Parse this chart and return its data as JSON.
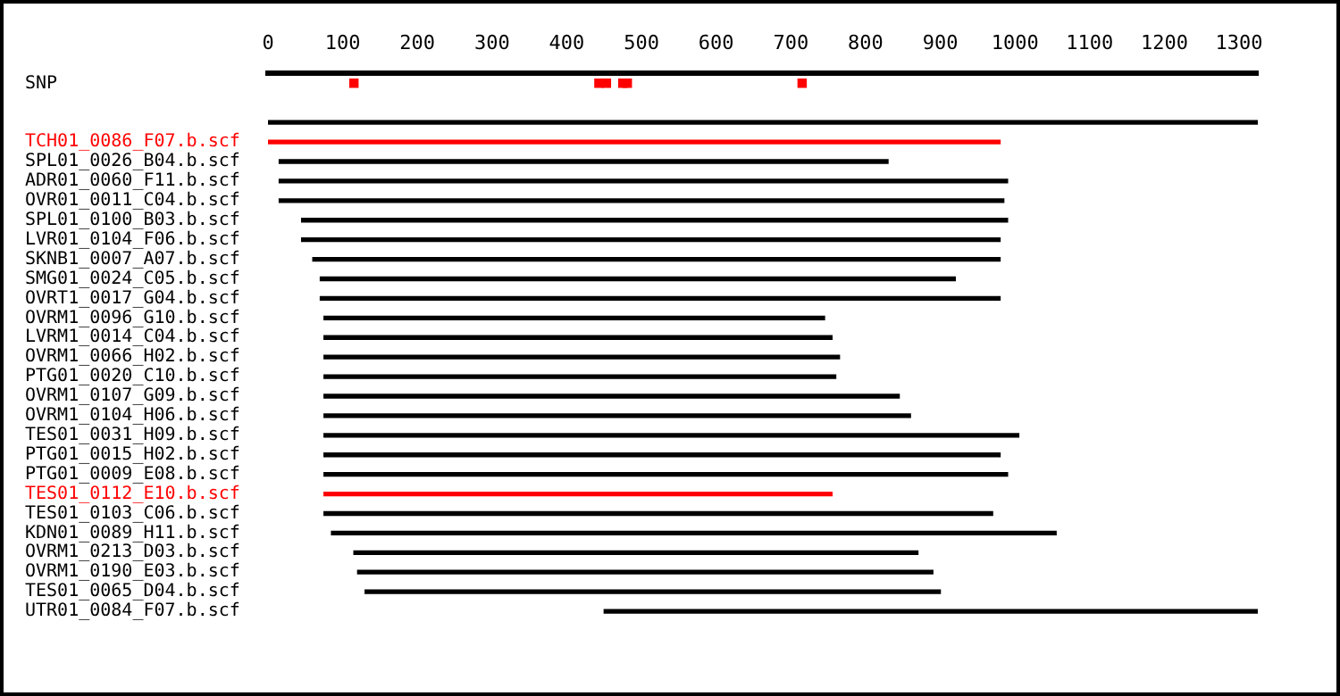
{
  "chart_data": {
    "type": "bar",
    "orientation": "horizontal",
    "legend": false,
    "grid": false,
    "categories": [
      "SNP",
      null,
      null,
      "TCH01_0086_F07.b.scf",
      "SPL01_0026_B04.b.scf",
      "ADR01_0060_F11.b.scf",
      "OVR01_0011_C04.b.scf",
      "SPL01_0100_B03.b.scf",
      "LVR01_0104_F06.b.scf",
      "SKNB1_0007_A07.b.scf",
      "SMG01_0024_C05.b.scf",
      "OVRT1_0017_G04.b.scf",
      "OVRM1_0096_G10.b.scf",
      "LVRM1_0014_C04.b.scf",
      "OVRM1_0066_H02.b.scf",
      "PTG01_0020_C10.b.scf",
      "OVRM1_0107_G09.b.scf",
      "OVRM1_0104_H06.b.scf",
      "TES01_0031_H09.b.scf",
      "PTG01_0015_H02.b.scf",
      "PTG01_0009_E08.b.scf",
      "TES01_0112_E10.b.scf",
      "TES01_0103_C06.b.scf",
      "KDN01_0089_H11.b.scf",
      "OVRM1_0213_D03.b.scf",
      "OVRM1_0190_E03.b.scf",
      "TES01_0065_D04.b.scf",
      "UTR01_0084_F07.b.scf"
    ],
    "xlim": [
      0,
      1325
    ],
    "xticks": [
      0,
      100,
      200,
      300,
      400,
      500,
      600,
      700,
      800,
      900,
      1000,
      1100,
      1200,
      1300
    ],
    "series": [
      {
        "base": [
          null,
          null,
          0,
          0,
          15,
          15,
          15,
          45,
          45,
          60,
          70,
          70,
          75,
          75,
          75,
          75,
          75,
          75,
          75,
          75,
          75,
          75,
          75,
          85,
          115,
          120,
          130,
          450
        ],
        "values": [
          null,
          null,
          1325,
          980,
          815,
          975,
          970,
          945,
          935,
          920,
          850,
          910,
          670,
          680,
          690,
          685,
          770,
          785,
          930,
          905,
          915,
          680,
          895,
          970,
          755,
          770,
          770,
          875
        ],
        "colors": [
          "#000000",
          "#000000",
          "#000000",
          "#ff0000",
          "#000000",
          "#000000",
          "#000000",
          "#000000",
          "#000000",
          "#000000",
          "#000000",
          "#000000",
          "#000000",
          "#000000",
          "#000000",
          "#000000",
          "#000000",
          "#000000",
          "#000000",
          "#000000",
          "#000000",
          "#ff0000",
          "#000000",
          "#000000",
          "#000000",
          "#000000",
          "#000000",
          "#000000"
        ]
      },
      {
        "type": "scatter",
        "color": "#ff0000",
        "marker": "square",
        "x": [
          "SNP",
          "SNP",
          "SNP",
          "SNP",
          "SNP",
          "SNP"
        ],
        "values": [
          115,
          443,
          453,
          475,
          481,
          715
        ]
      }
    ]
  }
}
